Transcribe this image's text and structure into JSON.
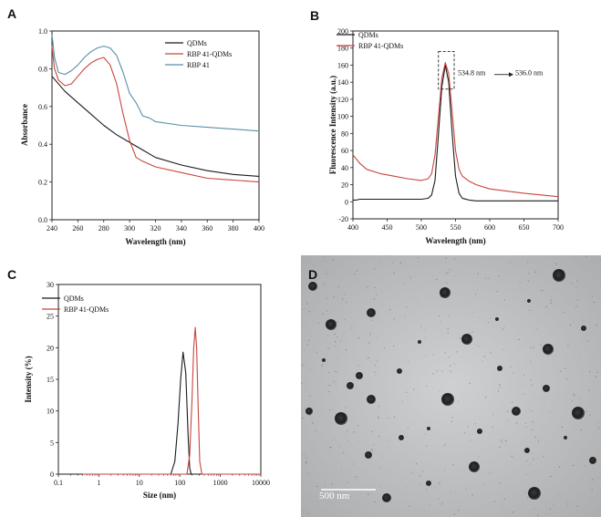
{
  "panels": {
    "A": "A",
    "B": "B",
    "C": "C",
    "D": "D"
  },
  "chart_data": [
    {
      "id": "A",
      "type": "line",
      "xlabel": "Wavelength (nm)",
      "ylabel": "Absorbance",
      "xlim": [
        240,
        400
      ],
      "ylim": [
        0.0,
        1.0
      ],
      "xticks": [
        240,
        260,
        280,
        300,
        320,
        340,
        360,
        380,
        400
      ],
      "yticks": [
        0.0,
        0.2,
        0.4,
        0.6,
        0.8,
        1.0
      ],
      "legend_position": "top-right",
      "series": [
        {
          "name": "QDMs",
          "color": "#1a1a1a",
          "x": [
            240,
            250,
            260,
            270,
            280,
            290,
            300,
            310,
            320,
            340,
            360,
            380,
            400
          ],
          "y": [
            0.76,
            0.68,
            0.62,
            0.56,
            0.5,
            0.45,
            0.41,
            0.37,
            0.33,
            0.29,
            0.26,
            0.24,
            0.23
          ]
        },
        {
          "name": "RBP 41-QDMs",
          "color": "#c8453d",
          "x": [
            240,
            242,
            245,
            250,
            255,
            260,
            265,
            270,
            275,
            280,
            285,
            290,
            295,
            300,
            305,
            310,
            320,
            340,
            360,
            380,
            400
          ],
          "y": [
            0.92,
            0.8,
            0.74,
            0.71,
            0.72,
            0.76,
            0.8,
            0.83,
            0.85,
            0.86,
            0.82,
            0.72,
            0.56,
            0.42,
            0.33,
            0.31,
            0.28,
            0.25,
            0.22,
            0.21,
            0.2
          ]
        },
        {
          "name": "RBP 41",
          "color": "#5a8ea7",
          "x": [
            240,
            242,
            245,
            250,
            255,
            260,
            265,
            270,
            275,
            280,
            285,
            290,
            295,
            300,
            305,
            308,
            310,
            315,
            320,
            340,
            360,
            380,
            400
          ],
          "y": [
            0.98,
            0.86,
            0.78,
            0.77,
            0.79,
            0.82,
            0.86,
            0.89,
            0.91,
            0.92,
            0.91,
            0.87,
            0.78,
            0.67,
            0.62,
            0.58,
            0.55,
            0.54,
            0.52,
            0.5,
            0.49,
            0.48,
            0.47
          ]
        }
      ]
    },
    {
      "id": "B",
      "type": "line",
      "xlabel": "Wavelength (nm)",
      "ylabel": "Fluorescence Intensity (a.u.)",
      "xlim": [
        400,
        700
      ],
      "ylim": [
        -20,
        200
      ],
      "xticks": [
        400,
        450,
        500,
        550,
        600,
        650,
        700
      ],
      "yticks": [
        -20,
        0,
        20,
        40,
        60,
        80,
        100,
        120,
        140,
        160,
        180,
        200
      ],
      "legend_position": "top-left",
      "annotations": [
        "534.8 nm",
        "536.0 nm"
      ],
      "series": [
        {
          "name": "QDMs",
          "color": "#1a1a1a",
          "x": [
            400,
            405,
            410,
            440,
            480,
            500,
            510,
            515,
            520,
            525,
            530,
            535,
            540,
            545,
            550,
            555,
            560,
            570,
            580,
            600,
            650,
            700
          ],
          "y": [
            2,
            2,
            3,
            3,
            3,
            3,
            4,
            8,
            25,
            80,
            135,
            160,
            140,
            80,
            30,
            10,
            4,
            2,
            1,
            1,
            1,
            1
          ]
        },
        {
          "name": "RBP 41-QDMs",
          "color": "#c8453d",
          "x": [
            400,
            410,
            420,
            440,
            460,
            480,
            500,
            510,
            515,
            520,
            525,
            530,
            535,
            540,
            545,
            550,
            555,
            560,
            570,
            580,
            600,
            650,
            700
          ],
          "y": [
            55,
            45,
            38,
            33,
            30,
            27,
            25,
            27,
            33,
            55,
            100,
            145,
            163,
            150,
            105,
            60,
            38,
            30,
            24,
            20,
            15,
            10,
            6
          ]
        }
      ]
    },
    {
      "id": "C",
      "type": "line",
      "xlabel": "Size (nm)",
      "ylabel": "Intensity (%)",
      "xlim": [
        0.1,
        10000
      ],
      "xscale": "log",
      "ylim": [
        0,
        30
      ],
      "xticks": [
        0.1,
        1,
        10,
        100,
        1000,
        10000
      ],
      "xticklabels": [
        "0.1",
        "1",
        "10",
        "100",
        "1000",
        "10000"
      ],
      "yticks": [
        0,
        5,
        10,
        15,
        20,
        25,
        30
      ],
      "legend_position": "top-left",
      "series": [
        {
          "name": "QDMs",
          "color": "#1a1a1a",
          "x": [
            0.4,
            60,
            75,
            90,
            105,
            120,
            140,
            160,
            175,
            190,
            10000
          ],
          "y": [
            0,
            0,
            2,
            8,
            15,
            19.3,
            16,
            6,
            1,
            0,
            0
          ]
        },
        {
          "name": "RBP 41-QDMs",
          "color": "#c8453d",
          "x": [
            0.4,
            150,
            175,
            200,
            220,
            240,
            260,
            285,
            310,
            350,
            10000
          ],
          "y": [
            0,
            0,
            3,
            12,
            20,
            23.2,
            20,
            10,
            2,
            0,
            0
          ]
        }
      ]
    }
  ],
  "micrograph": {
    "scalebar": "500 nm"
  }
}
